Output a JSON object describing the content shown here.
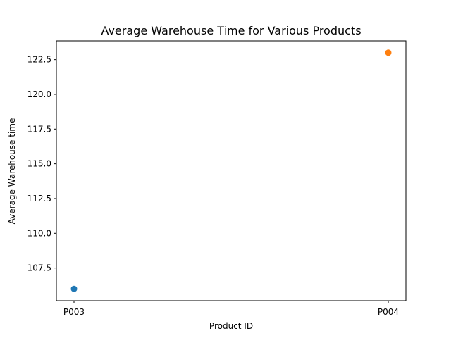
{
  "chart_data": {
    "type": "scatter",
    "title": "Average Warehouse Time for Various Products",
    "xlabel": "Product ID",
    "ylabel": "Average Warehouse time",
    "categories": [
      "P003",
      "P004"
    ],
    "series": [
      {
        "category": "P003",
        "value": 106,
        "color": "#1f77b4"
      },
      {
        "category": "P004",
        "value": 123,
        "color": "#ff7f0e"
      }
    ],
    "ylim": [
      105.15,
      123.85
    ],
    "yticks": [
      107.5,
      110.0,
      112.5,
      115.0,
      117.5,
      120.0,
      122.5
    ],
    "grid": false,
    "legend": "none"
  }
}
